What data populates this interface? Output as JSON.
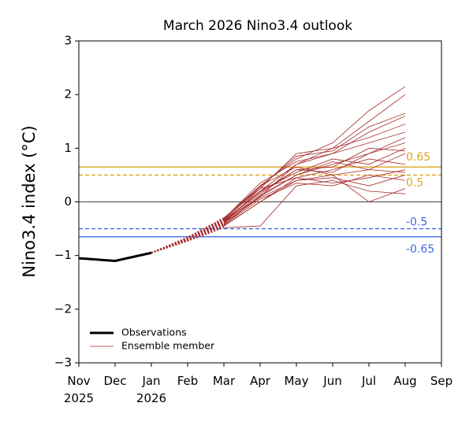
{
  "chart_data": {
    "type": "line",
    "title": "March 2026 Nino3.4 outlook",
    "y_label": "Nino3.4 index (°C)",
    "categories": [
      "Nov 2025",
      "Dec",
      "Jan 2026",
      "Feb",
      "Mar",
      "Apr",
      "May",
      "Jun",
      "Jul",
      "Aug",
      "Sep"
    ],
    "ylim": [
      -3,
      3
    ],
    "yticks": [
      {
        "value": -3,
        "label": "−3"
      },
      {
        "value": -2,
        "label": "−2"
      },
      {
        "value": -1,
        "label": "−1"
      },
      0,
      1,
      2,
      3
    ],
    "grid": false,
    "legend": "lower left",
    "series": [
      {
        "name": "Observations",
        "color": "#000000",
        "values": [
          -1.05,
          -1.1,
          -0.95,
          null,
          null,
          null,
          null,
          null,
          null,
          null,
          null
        ]
      }
    ],
    "ensemble": {
      "name": "Ensemble member",
      "color": "#a52a2a",
      "members": [
        [
          null,
          null,
          -0.95,
          -0.72,
          -0.45,
          0.0,
          0.4,
          0.5,
          0.6,
          0.55,
          null
        ],
        [
          null,
          null,
          -0.95,
          -0.68,
          -0.35,
          0.2,
          0.7,
          0.9,
          1.3,
          1.6,
          null
        ],
        [
          null,
          null,
          -0.95,
          -0.66,
          -0.3,
          0.3,
          0.8,
          1.1,
          1.7,
          2.15,
          null
        ],
        [
          null,
          null,
          -0.95,
          -0.7,
          -0.4,
          0.1,
          0.5,
          0.7,
          0.9,
          1.2,
          null
        ],
        [
          null,
          null,
          -0.95,
          -0.73,
          -0.48,
          -0.45,
          0.3,
          0.4,
          0.2,
          0.15,
          null
        ],
        [
          null,
          null,
          -0.95,
          -0.69,
          -0.38,
          0.15,
          0.6,
          0.65,
          1.0,
          0.95,
          null
        ],
        [
          null,
          null,
          -0.95,
          -0.67,
          -0.32,
          0.25,
          0.9,
          1.0,
          1.2,
          1.45,
          null
        ],
        [
          null,
          null,
          -0.95,
          -0.71,
          -0.42,
          0.05,
          0.35,
          0.3,
          0.5,
          0.4,
          null
        ],
        [
          null,
          null,
          -0.95,
          -0.7,
          -0.37,
          0.2,
          0.55,
          0.8,
          0.7,
          1.0,
          null
        ],
        [
          null,
          null,
          -0.95,
          -0.68,
          -0.33,
          0.3,
          0.65,
          0.5,
          0.0,
          0.25,
          null
        ],
        [
          null,
          null,
          -0.95,
          -0.69,
          -0.36,
          0.1,
          0.7,
          1.0,
          1.5,
          2.0,
          null
        ],
        [
          null,
          null,
          -0.95,
          -0.72,
          -0.44,
          0.0,
          0.45,
          0.6,
          0.8,
          0.7,
          null
        ],
        [
          null,
          null,
          -0.95,
          -0.7,
          -0.4,
          0.25,
          0.45,
          0.35,
          0.45,
          0.6,
          null
        ],
        [
          null,
          null,
          -0.95,
          -0.67,
          -0.31,
          0.35,
          0.75,
          0.9,
          1.1,
          1.3,
          null
        ],
        [
          null,
          null,
          -0.95,
          -0.71,
          -0.43,
          0.12,
          0.5,
          0.75,
          0.6,
          0.9,
          null
        ],
        [
          null,
          null,
          -0.95,
          -0.69,
          -0.35,
          0.18,
          0.6,
          0.55,
          0.9,
          1.1,
          null
        ],
        [
          null,
          null,
          -0.95,
          -0.7,
          -0.39,
          0.08,
          0.4,
          0.45,
          0.3,
          0.5,
          null
        ],
        [
          null,
          null,
          -0.95,
          -0.68,
          -0.34,
          0.28,
          0.85,
          0.95,
          1.4,
          1.65,
          null
        ]
      ]
    },
    "hlines": [
      {
        "value": 0.65,
        "color": "#daa520",
        "style": "solid"
      },
      {
        "value": 0.5,
        "color": "#daa520",
        "style": "dashed"
      },
      {
        "value": -0.5,
        "color": "#4169e1",
        "style": "dashed"
      },
      {
        "value": -0.65,
        "color": "#4169e1",
        "style": "solid"
      }
    ]
  }
}
